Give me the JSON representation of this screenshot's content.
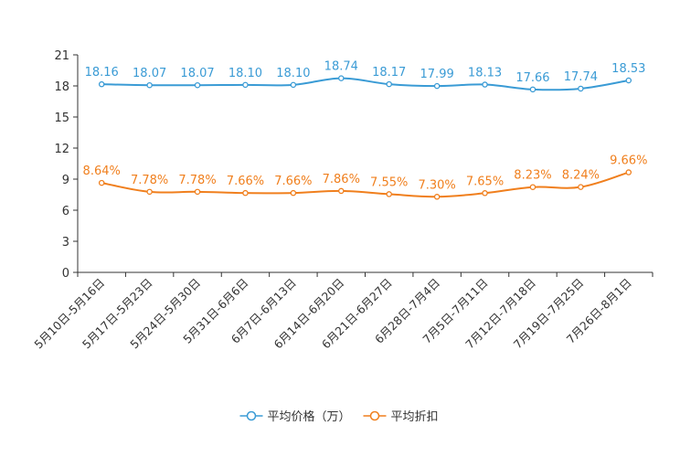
{
  "chart_data": {
    "type": "line",
    "title": "",
    "xlabel": "",
    "ylabel": "",
    "ylim": [
      0,
      21
    ],
    "yticks": [
      0,
      3,
      6,
      9,
      12,
      15,
      18,
      21
    ],
    "categories": [
      "5月10日-5月16日",
      "5月17日-5月23日",
      "5月24日-5月30日",
      "5月31日-6月6日",
      "6月7日-6月13日",
      "6月14日-6月20日",
      "6月21日-6月27日",
      "6月28日-7月4日",
      "7月5日-7月11日",
      "7月12日-7月18日",
      "7月19日-7月25日",
      "7月26日-8月1日"
    ],
    "series": [
      {
        "name": "平均价格（万）",
        "color": "#3a9bd5",
        "values": [
          18.16,
          18.07,
          18.07,
          18.1,
          18.1,
          18.74,
          18.17,
          17.99,
          18.13,
          17.66,
          17.74,
          18.53
        ],
        "labels": [
          "18.16",
          "18.07",
          "18.07",
          "18.10",
          "18.10",
          "18.74",
          "18.17",
          "17.99",
          "18.13",
          "17.66",
          "17.74",
          "18.53"
        ]
      },
      {
        "name": "平均折扣",
        "color": "#f07f1d",
        "values": [
          8.64,
          7.78,
          7.78,
          7.66,
          7.66,
          7.86,
          7.55,
          7.3,
          7.65,
          8.23,
          8.24,
          9.66
        ],
        "labels": [
          "8.64%",
          "7.78%",
          "7.78%",
          "7.66%",
          "7.66%",
          "7.86%",
          "7.55%",
          "7.30%",
          "7.65%",
          "8.23%",
          "8.24%",
          "9.66%"
        ]
      }
    ],
    "legend_position": "bottom-center"
  }
}
